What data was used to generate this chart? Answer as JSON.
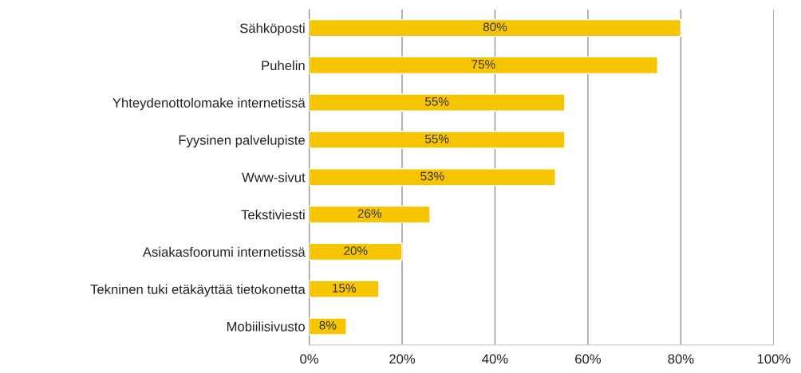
{
  "chart_data": {
    "type": "bar",
    "orientation": "horizontal",
    "categories": [
      "Sähköposti",
      "Puhelin",
      "Yhteydenottolomake internetissä",
      "Fyysinen palvelupiste",
      "Www-sivut",
      "Tekstiviesti",
      "Asiakasfoorumi internetissä",
      "Tekninen tuki etäkäyttää tietokonetta",
      "Mobiilisivusto"
    ],
    "values": [
      80,
      75,
      55,
      55,
      53,
      26,
      20,
      15,
      8
    ],
    "value_labels": [
      "80%",
      "75%",
      "55%",
      "55%",
      "53%",
      "26%",
      "20%",
      "15%",
      "8%"
    ],
    "color": "#f7c400",
    "xlim": [
      0,
      100
    ],
    "xticks": [
      {
        "value": 0,
        "label": "0%"
      },
      {
        "value": 20,
        "label": "20%"
      },
      {
        "value": 40,
        "label": "40%"
      },
      {
        "value": 60,
        "label": "60%"
      },
      {
        "value": 80,
        "label": "80%"
      },
      {
        "value": 100,
        "label": "100%"
      }
    ],
    "grid": "x",
    "legend": false
  }
}
